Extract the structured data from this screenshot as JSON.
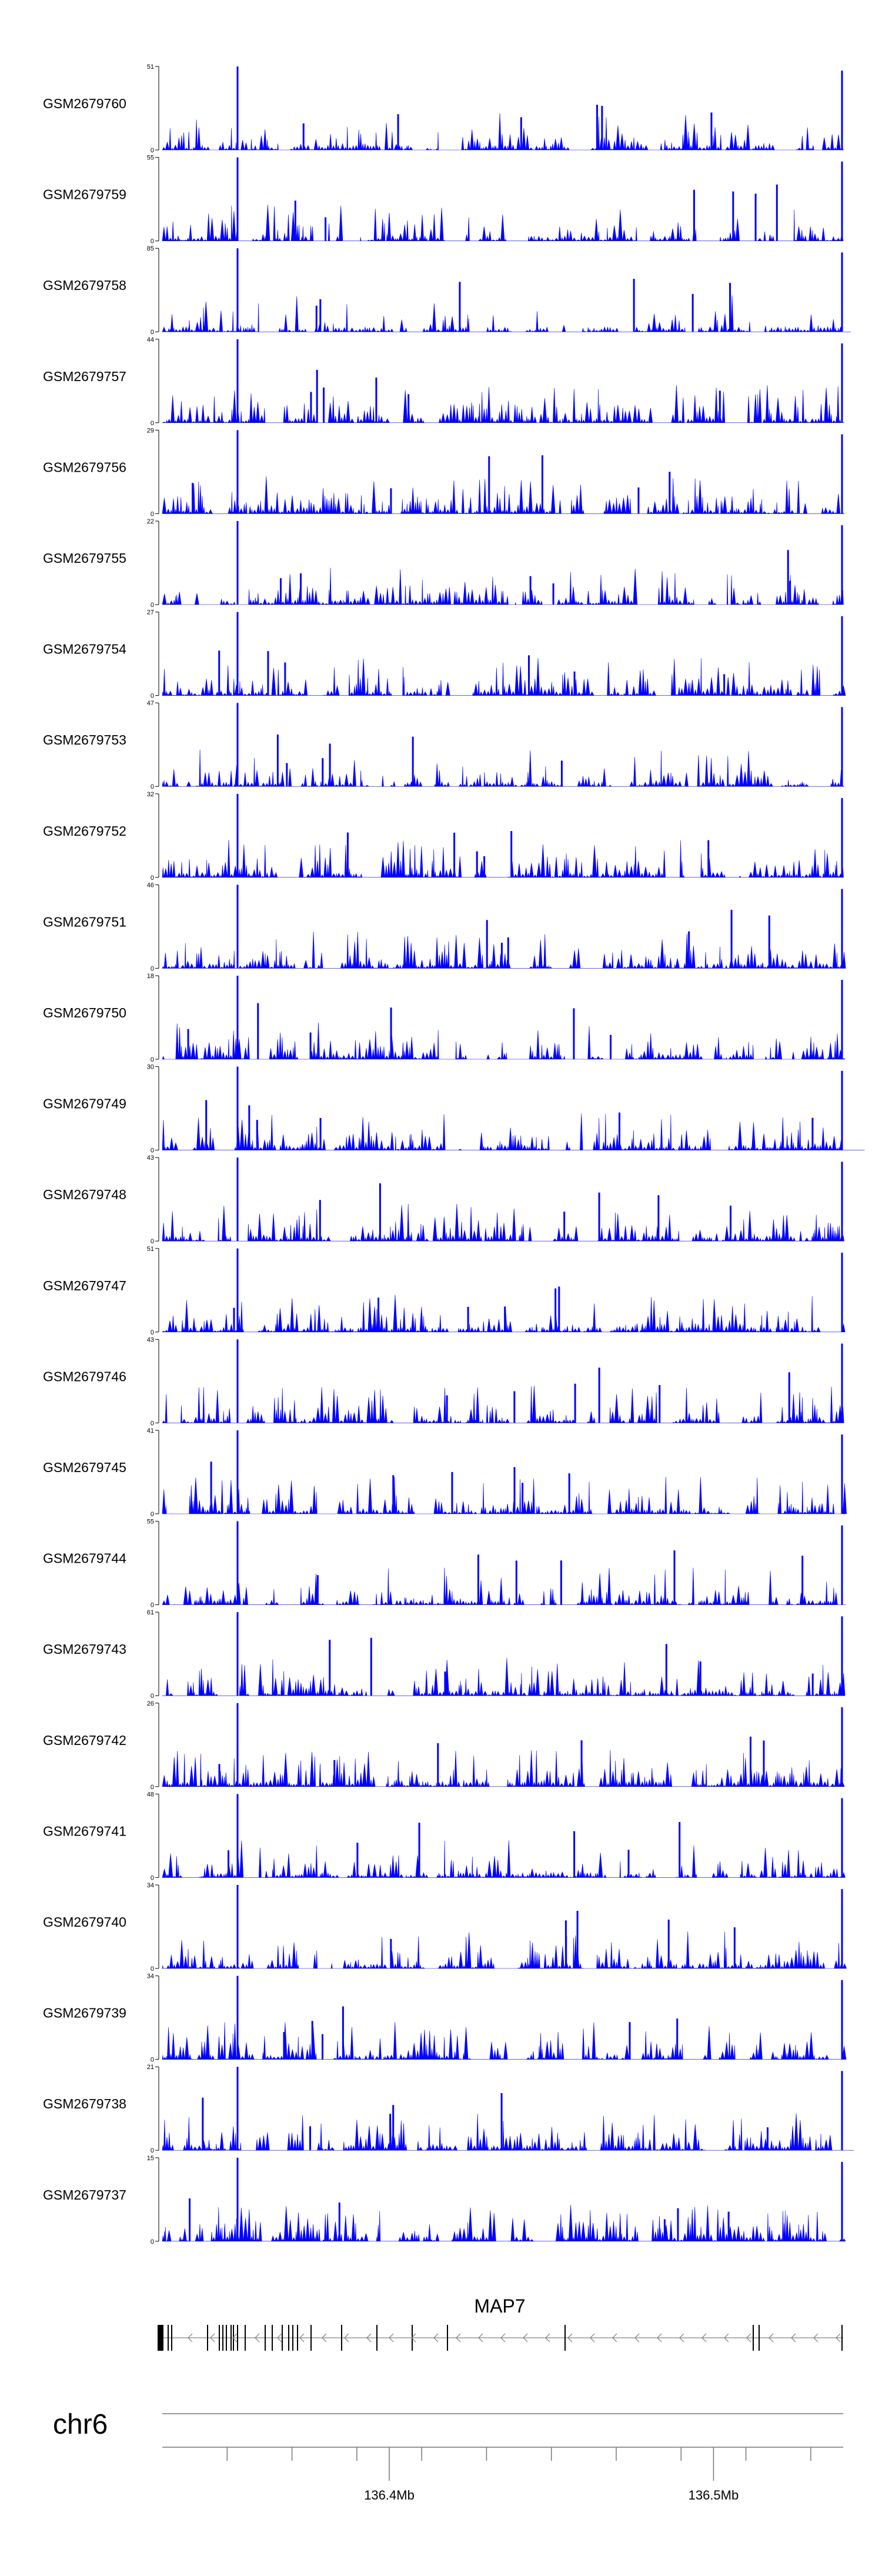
{
  "chart_data": {
    "type": "area",
    "title": "",
    "tracks": [
      {
        "name": "GSM2679760",
        "ymin": 0,
        "ymax": 51
      },
      {
        "name": "GSM2679759",
        "ymin": 0,
        "ymax": 55
      },
      {
        "name": "GSM2679758",
        "ymin": 0,
        "ymax": 85
      },
      {
        "name": "GSM2679757",
        "ymin": 0,
        "ymax": 44
      },
      {
        "name": "GSM2679756",
        "ymin": 0,
        "ymax": 29
      },
      {
        "name": "GSM2679755",
        "ymin": 0,
        "ymax": 22
      },
      {
        "name": "GSM2679754",
        "ymin": 0,
        "ymax": 27
      },
      {
        "name": "GSM2679753",
        "ymin": 0,
        "ymax": 47
      },
      {
        "name": "GSM2679752",
        "ymin": 0,
        "ymax": 32
      },
      {
        "name": "GSM2679751",
        "ymin": 0,
        "ymax": 46
      },
      {
        "name": "GSM2679750",
        "ymin": 0,
        "ymax": 18
      },
      {
        "name": "GSM2679749",
        "ymin": 0,
        "ymax": 30
      },
      {
        "name": "GSM2679748",
        "ymin": 0,
        "ymax": 43
      },
      {
        "name": "GSM2679747",
        "ymin": 0,
        "ymax": 51
      },
      {
        "name": "GSM2679746",
        "ymin": 0,
        "ymax": 43
      },
      {
        "name": "GSM2679745",
        "ymin": 0,
        "ymax": 41
      },
      {
        "name": "GSM2679744",
        "ymin": 0,
        "ymax": 55
      },
      {
        "name": "GSM2679743",
        "ymin": 0,
        "ymax": 61
      },
      {
        "name": "GSM2679742",
        "ymin": 0,
        "ymax": 26
      },
      {
        "name": "GSM2679741",
        "ymin": 0,
        "ymax": 48
      },
      {
        "name": "GSM2679740",
        "ymin": 0,
        "ymax": 34
      },
      {
        "name": "GSM2679739",
        "ymin": 0,
        "ymax": 34
      },
      {
        "name": "GSM2679738",
        "ymin": 0,
        "ymax": 21
      },
      {
        "name": "GSM2679737",
        "ymin": 0,
        "ymax": 15
      }
    ],
    "gene": {
      "name": "MAP7",
      "strand": "-"
    },
    "chromosome": "chr6",
    "xlim_mb": [
      136.33,
      136.54
    ],
    "xticks_mb": [
      136.35,
      136.37,
      136.39,
      136.41,
      136.43,
      136.45,
      136.47,
      136.49,
      136.51,
      136.53
    ],
    "xtick_labels": [
      {
        "value": 136.4,
        "label": "136.4Mb"
      },
      {
        "value": 136.5,
        "label": "136.5Mb"
      }
    ],
    "color": "#0000ff"
  }
}
